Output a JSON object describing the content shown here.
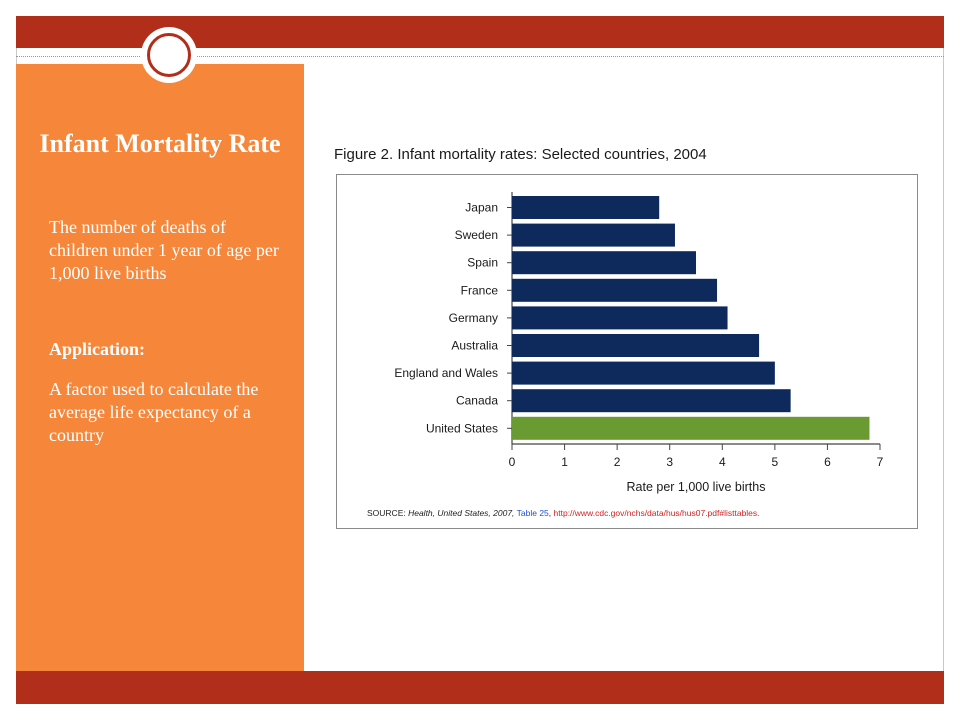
{
  "slide": {
    "title": "Infant Mortality Rate",
    "definition": "The number of deaths of children under 1 year of age per 1,000 live births",
    "application_label": "Application:",
    "application_text": "A factor used to calculate the average life expectancy of a country"
  },
  "figure": {
    "title": "Figure 2.  Infant mortality rates:  Selected countries, 2004",
    "source": {
      "prefix": "SOURCE:  ",
      "publication": "Health, United States, 2007,",
      "table": "Table 25",
      "url": "http://www.cdc.gov/nchs/data/hus/hus07.pdf#listtables."
    }
  },
  "colors": {
    "band": "#b12e1a",
    "panel": "#f6863a",
    "bar_default": "#0e2a5c",
    "bar_highlight": "#6a9a32"
  },
  "chart_data": {
    "type": "bar",
    "orientation": "horizontal",
    "categories": [
      "Japan",
      "Sweden",
      "Spain",
      "France",
      "Germany",
      "Australia",
      "England and Wales",
      "Canada",
      "United States"
    ],
    "values": [
      2.8,
      3.1,
      3.5,
      3.9,
      4.1,
      4.7,
      5.0,
      5.3,
      6.8
    ],
    "highlight": "United States",
    "xlabel": "Rate per 1,000 live births",
    "xlim": [
      0,
      7
    ],
    "xticks": [
      0,
      1,
      2,
      3,
      4,
      5,
      6,
      7
    ],
    "grid": false
  }
}
